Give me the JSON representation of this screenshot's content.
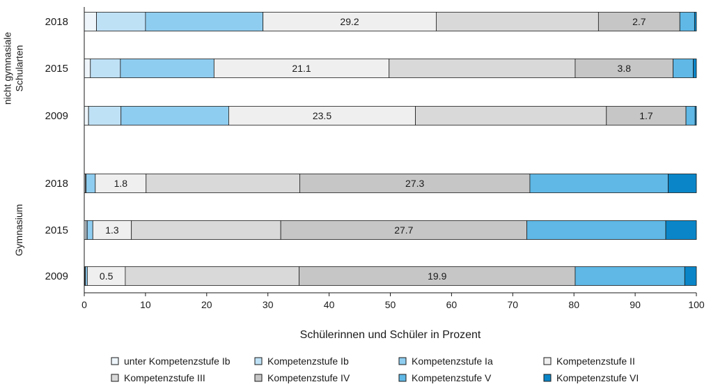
{
  "chart_data": {
    "type": "bar",
    "orientation": "horizontal",
    "stacked": true,
    "xlabel": "Schülerinnen und Schüler in Prozent",
    "xlim": [
      0,
      100
    ],
    "xticks": [
      0,
      10,
      20,
      30,
      40,
      50,
      60,
      70,
      80,
      90,
      100
    ],
    "grid": false,
    "legend_position": "bottom",
    "groups": [
      {
        "label": "nicht gymnasiale Schularten",
        "label_lines": [
          "nicht gymnasiale",
          "Schularten"
        ]
      },
      {
        "label": "Gymnasium",
        "label_lines": [
          "Gymnasium"
        ]
      }
    ],
    "series": [
      {
        "name": "unter Kompetenzstufe Ib",
        "color": "#eef6fc"
      },
      {
        "name": "Kompetenzstufe Ib",
        "color": "#bfe1f6"
      },
      {
        "name": "Kompetenzstufe Ia",
        "color": "#8fcdf0"
      },
      {
        "name": "Kompetenzstufe II",
        "color": "#efefef"
      },
      {
        "name": "Kompetenzstufe III",
        "color": "#d9d9d9"
      },
      {
        "name": "Kompetenzstufe IV",
        "color": "#c6c6c6"
      },
      {
        "name": "Kompetenzstufe V",
        "color": "#5fb8e6"
      },
      {
        "name": "Kompetenzstufe VI",
        "color": "#0a86c8"
      }
    ],
    "rows": [
      {
        "group": 0,
        "year": "2018",
        "values": [
          2.0,
          8.0,
          19.2,
          28.3,
          26.5,
          13.3,
          2.4,
          0.3
        ],
        "labels": [
          {
            "series": 3,
            "text": "29.2"
          },
          {
            "series": 5,
            "text": "2.7"
          }
        ]
      },
      {
        "group": 0,
        "year": "2015",
        "values": [
          1.0,
          4.9,
          15.3,
          28.6,
          30.4,
          16.0,
          3.3,
          0.5
        ],
        "labels": [
          {
            "series": 3,
            "text": "21.1"
          },
          {
            "series": 5,
            "text": "3.8"
          }
        ]
      },
      {
        "group": 0,
        "year": "2009",
        "values": [
          0.7,
          5.3,
          17.6,
          30.5,
          31.2,
          13.0,
          1.5,
          0.2
        ],
        "labels": [
          {
            "series": 3,
            "text": "23.5"
          },
          {
            "series": 5,
            "text": "1.7"
          }
        ]
      },
      {
        "group": 1,
        "year": "2018",
        "values": [
          0.2,
          0.1,
          1.5,
          8.3,
          25.1,
          37.6,
          22.6,
          4.6
        ],
        "labels": [
          {
            "series": 3,
            "text": "1.8"
          },
          {
            "series": 5,
            "text": "27.3"
          }
        ]
      },
      {
        "group": 1,
        "year": "2015",
        "values": [
          0.3,
          0.2,
          0.9,
          6.3,
          24.4,
          40.2,
          22.7,
          5.0
        ],
        "labels": [
          {
            "series": 3,
            "text": "1.3"
          },
          {
            "series": 5,
            "text": "27.7"
          }
        ]
      },
      {
        "group": 1,
        "year": "2009",
        "values": [
          0.1,
          0.1,
          0.3,
          6.2,
          28.4,
          45.1,
          17.9,
          1.9
        ],
        "labels": [
          {
            "series": 3,
            "text": "0.5"
          },
          {
            "series": 5,
            "text": "19.9"
          }
        ]
      }
    ]
  }
}
